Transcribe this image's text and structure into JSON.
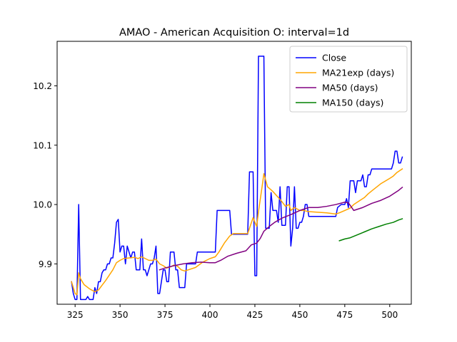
{
  "chart_data": {
    "type": "line",
    "title": "AMAO - American Acquisition O: interval=1d",
    "xlabel": "",
    "ylabel": "",
    "xlim": [
      315,
      512
    ],
    "ylim": [
      9.832,
      10.275
    ],
    "xticks": [
      325,
      350,
      375,
      400,
      425,
      450,
      475,
      500
    ],
    "yticks": [
      9.9,
      10.0,
      10.1,
      10.2
    ],
    "ytick_labels": [
      "9.9",
      "10.0",
      "10.1",
      "10.2"
    ],
    "grid": false,
    "legend_position": "top-right",
    "series": [
      {
        "name": "Close",
        "color": "#0000ff",
        "points": [
          [
            323,
            9.87
          ],
          [
            324,
            9.85
          ],
          [
            325,
            9.84
          ],
          [
            326,
            9.84
          ],
          [
            327,
            10.0
          ],
          [
            328,
            9.84
          ],
          [
            329,
            9.84
          ],
          [
            331,
            9.84
          ],
          [
            332,
            9.845
          ],
          [
            333,
            9.84
          ],
          [
            335,
            9.84
          ],
          [
            336,
            9.86
          ],
          [
            337,
            9.85
          ],
          [
            338,
            9.87
          ],
          [
            339,
            9.87
          ],
          [
            340,
            9.885
          ],
          [
            341,
            9.89
          ],
          [
            342,
            9.89
          ],
          [
            343,
            9.9
          ],
          [
            344,
            9.9
          ],
          [
            345,
            9.91
          ],
          [
            346,
            9.91
          ],
          [
            347,
            9.935
          ],
          [
            348,
            9.97
          ],
          [
            349,
            9.975
          ],
          [
            350,
            9.92
          ],
          [
            351,
            9.93
          ],
          [
            352,
            9.93
          ],
          [
            353,
            9.9
          ],
          [
            354,
            9.93
          ],
          [
            355,
            9.92
          ],
          [
            356,
            9.91
          ],
          [
            357,
            9.92
          ],
          [
            358,
            9.92
          ],
          [
            359,
            9.89
          ],
          [
            360,
            9.89
          ],
          [
            361,
            9.89
          ],
          [
            362,
            9.942
          ],
          [
            363,
            9.89
          ],
          [
            364,
            9.89
          ],
          [
            365,
            9.88
          ],
          [
            366,
            9.89
          ],
          [
            367,
            9.9
          ],
          [
            368,
            9.9
          ],
          [
            369,
            9.91
          ],
          [
            370,
            9.93
          ],
          [
            371,
            9.85
          ],
          [
            372,
            9.85
          ],
          [
            373,
            9.87
          ],
          [
            374,
            9.89
          ],
          [
            375,
            9.89
          ],
          [
            376,
            9.87
          ],
          [
            377,
            9.87
          ],
          [
            378,
            9.92
          ],
          [
            379,
            9.92
          ],
          [
            380,
            9.92
          ],
          [
            381,
            9.89
          ],
          [
            382,
            9.89
          ],
          [
            383,
            9.86
          ],
          [
            384,
            9.86
          ],
          [
            386,
            9.86
          ],
          [
            387,
            9.9
          ],
          [
            388,
            9.9
          ],
          [
            392,
            9.9
          ],
          [
            393,
            9.92
          ],
          [
            403,
            9.92
          ],
          [
            404,
            9.99
          ],
          [
            411,
            9.99
          ],
          [
            412,
            9.95
          ],
          [
            413,
            9.95
          ],
          [
            421,
            9.95
          ],
          [
            422,
            10.055
          ],
          [
            424,
            10.055
          ],
          [
            425,
            9.88
          ],
          [
            426,
            9.88
          ],
          [
            427,
            10.25
          ],
          [
            430,
            10.25
          ],
          [
            431,
            9.96
          ],
          [
            432,
            9.96
          ],
          [
            433,
            9.96
          ],
          [
            434,
            10.02
          ],
          [
            435,
            9.99
          ],
          [
            436,
            9.99
          ],
          [
            437,
            9.99
          ],
          [
            438,
            9.97
          ],
          [
            439,
            10.03
          ],
          [
            440,
            9.965
          ],
          [
            441,
            9.965
          ],
          [
            442,
            9.965
          ],
          [
            443,
            10.03
          ],
          [
            444,
            10.03
          ],
          [
            445,
            9.93
          ],
          [
            446,
            9.96
          ],
          [
            447,
            10.03
          ],
          [
            448,
            9.96
          ],
          [
            449,
            9.96
          ],
          [
            450,
            9.97
          ],
          [
            451,
            9.97
          ],
          [
            452,
            9.98
          ],
          [
            453,
            10.0
          ],
          [
            454,
            10.0
          ],
          [
            455,
            9.98
          ],
          [
            470,
            9.98
          ],
          [
            471,
            9.995
          ],
          [
            473,
            10.0
          ],
          [
            474,
            10.0
          ],
          [
            475,
            10.0
          ],
          [
            476,
            10.01
          ],
          [
            477,
            9.995
          ],
          [
            478,
            10.04
          ],
          [
            480,
            10.04
          ],
          [
            481,
            10.02
          ],
          [
            482,
            10.04
          ],
          [
            484,
            10.04
          ],
          [
            485,
            10.05
          ],
          [
            486,
            10.03
          ],
          [
            487,
            10.03
          ],
          [
            488,
            10.05
          ],
          [
            489,
            10.05
          ],
          [
            490,
            10.06
          ],
          [
            501,
            10.06
          ],
          [
            502,
            10.07
          ],
          [
            503,
            10.09
          ],
          [
            504,
            10.09
          ],
          [
            505,
            10.07
          ],
          [
            506,
            10.07
          ],
          [
            507,
            10.08
          ]
        ]
      },
      {
        "name": "MA21exp (days)",
        "color": "#ffa500",
        "points": [
          [
            323,
            9.87
          ],
          [
            325,
            9.85
          ],
          [
            326,
            9.848
          ],
          [
            327,
            9.885
          ],
          [
            328,
            9.875
          ],
          [
            330,
            9.865
          ],
          [
            333,
            9.858
          ],
          [
            336,
            9.853
          ],
          [
            338,
            9.856
          ],
          [
            340,
            9.864
          ],
          [
            342,
            9.872
          ],
          [
            344,
            9.881
          ],
          [
            346,
            9.89
          ],
          [
            348,
            9.902
          ],
          [
            350,
            9.906
          ],
          [
            352,
            9.909
          ],
          [
            355,
            9.91
          ],
          [
            358,
            9.911
          ],
          [
            360,
            9.909
          ],
          [
            362,
            9.912
          ],
          [
            364,
            9.909
          ],
          [
            366,
            9.906
          ],
          [
            368,
            9.906
          ],
          [
            370,
            9.908
          ],
          [
            372,
            9.9
          ],
          [
            374,
            9.897
          ],
          [
            376,
            9.893
          ],
          [
            378,
            9.895
          ],
          [
            380,
            9.898
          ],
          [
            382,
            9.896
          ],
          [
            384,
            9.89
          ],
          [
            386,
            9.888
          ],
          [
            388,
            9.89
          ],
          [
            392,
            9.894
          ],
          [
            396,
            9.903
          ],
          [
            400,
            9.909
          ],
          [
            403,
            9.912
          ],
          [
            405,
            9.92
          ],
          [
            408,
            9.935
          ],
          [
            411,
            9.947
          ],
          [
            413,
            9.951
          ],
          [
            416,
            9.951
          ],
          [
            421,
            9.951
          ],
          [
            422,
            9.96
          ],
          [
            424,
            9.978
          ],
          [
            425,
            9.97
          ],
          [
            426,
            9.963
          ],
          [
            427,
            9.988
          ],
          [
            429,
            10.03
          ],
          [
            430,
            10.052
          ],
          [
            432,
            10.03
          ],
          [
            435,
            10.022
          ],
          [
            438,
            10.012
          ],
          [
            440,
            10.005
          ],
          [
            442,
            9.997
          ],
          [
            444,
            10.0
          ],
          [
            445,
            9.99
          ],
          [
            447,
            9.995
          ],
          [
            450,
            9.99
          ],
          [
            452,
            9.99
          ],
          [
            455,
            9.988
          ],
          [
            460,
            9.987
          ],
          [
            465,
            9.986
          ],
          [
            470,
            9.984
          ],
          [
            472,
            9.986
          ],
          [
            475,
            9.99
          ],
          [
            478,
            9.994
          ],
          [
            480,
            10.0
          ],
          [
            484,
            10.008
          ],
          [
            486,
            10.012
          ],
          [
            488,
            10.018
          ],
          [
            490,
            10.023
          ],
          [
            495,
            10.035
          ],
          [
            500,
            10.044
          ],
          [
            502,
            10.048
          ],
          [
            504,
            10.054
          ],
          [
            507,
            10.06
          ]
        ]
      },
      {
        "name": "MA50 (days)",
        "color": "#800080",
        "points": [
          [
            372,
            9.89
          ],
          [
            375,
            9.893
          ],
          [
            380,
            9.897
          ],
          [
            385,
            9.9
          ],
          [
            390,
            9.902
          ],
          [
            395,
            9.903
          ],
          [
            400,
            9.902
          ],
          [
            403,
            9.902
          ],
          [
            406,
            9.906
          ],
          [
            410,
            9.913
          ],
          [
            415,
            9.918
          ],
          [
            420,
            9.922
          ],
          [
            423,
            9.932
          ],
          [
            426,
            9.935
          ],
          [
            428,
            9.943
          ],
          [
            430,
            9.955
          ],
          [
            433,
            9.963
          ],
          [
            436,
            9.97
          ],
          [
            440,
            9.977
          ],
          [
            445,
            9.983
          ],
          [
            450,
            9.99
          ],
          [
            455,
            9.995
          ],
          [
            460,
            9.995
          ],
          [
            465,
            9.997
          ],
          [
            470,
            10.0
          ],
          [
            475,
            10.004
          ],
          [
            477,
            10.003
          ],
          [
            480,
            9.99
          ],
          [
            485,
            9.995
          ],
          [
            490,
            10.002
          ],
          [
            495,
            10.007
          ],
          [
            500,
            10.014
          ],
          [
            505,
            10.024
          ],
          [
            507,
            10.029
          ]
        ]
      },
      {
        "name": "MA150 (days)",
        "color": "#008000",
        "points": [
          [
            472,
            9.939
          ],
          [
            475,
            9.942
          ],
          [
            478,
            9.944
          ],
          [
            482,
            9.949
          ],
          [
            486,
            9.954
          ],
          [
            490,
            9.959
          ],
          [
            494,
            9.963
          ],
          [
            498,
            9.967
          ],
          [
            502,
            9.97
          ],
          [
            505,
            9.974
          ],
          [
            507,
            9.976
          ]
        ]
      }
    ]
  }
}
